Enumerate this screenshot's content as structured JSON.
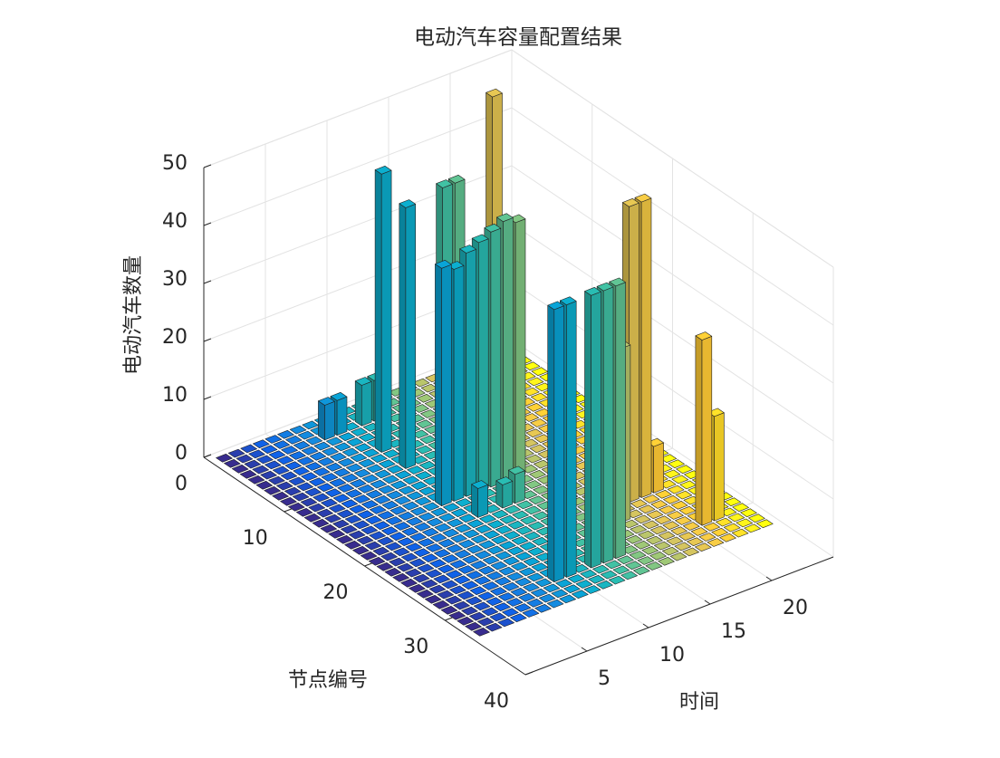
{
  "chart_data": {
    "type": "bar3",
    "title": "电动汽车容量配置结果",
    "xlabel": "时间",
    "ylabel": "节点编号",
    "zlabel": "电动汽车数量",
    "colormap": "parula",
    "grid": true,
    "xlim": [
      0,
      25
    ],
    "ylim": [
      0,
      40
    ],
    "zlim": [
      0,
      50
    ],
    "xticks": [
      5,
      10,
      15,
      20
    ],
    "yticks": [
      0,
      10,
      20,
      30,
      40
    ],
    "zticks": [
      0,
      10,
      20,
      30,
      40,
      50
    ],
    "x": [
      1,
      2,
      3,
      4,
      5,
      6,
      7,
      8,
      9,
      10,
      11,
      12,
      13,
      14,
      15,
      16,
      17,
      18,
      19,
      20,
      21,
      22,
      23,
      24
    ],
    "y": [
      1,
      2,
      3,
      4,
      5,
      6,
      7,
      8,
      9,
      10,
      11,
      12,
      13,
      14,
      15,
      16,
      17,
      18,
      19,
      20,
      21,
      22,
      23,
      24,
      25,
      26,
      27,
      28,
      29,
      30,
      31,
      32,
      33
    ],
    "values": [
      [
        0,
        0,
        0,
        0,
        0,
        0,
        0,
        0,
        0,
        0,
        0,
        0,
        0,
        0,
        0,
        0,
        0,
        0,
        0,
        0,
        0,
        0,
        0,
        0
      ],
      [
        0,
        0,
        0,
        0,
        0,
        0,
        0,
        0,
        0,
        0,
        0,
        0,
        0,
        0,
        0,
        0,
        0,
        0,
        0,
        0,
        0,
        0,
        0,
        0
      ],
      [
        0,
        0,
        0,
        0,
        0,
        0,
        0,
        6,
        6,
        0,
        7,
        7,
        0,
        0,
        0,
        0,
        0,
        0,
        0,
        0,
        0,
        0,
        0,
        0
      ],
      [
        0,
        0,
        0,
        0,
        0,
        0,
        0,
        0,
        0,
        0,
        0,
        0,
        0,
        0,
        0,
        0,
        0,
        0,
        0,
        0,
        0,
        0,
        0,
        0
      ],
      [
        0,
        0,
        0,
        0,
        0,
        0,
        0,
        0,
        0,
        0,
        0,
        0,
        0,
        0,
        0,
        0,
        0,
        0,
        0,
        0,
        0,
        0,
        0,
        0
      ],
      [
        0,
        0,
        0,
        0,
        0,
        0,
        0,
        0,
        0,
        0,
        0,
        0,
        0,
        0,
        0,
        0,
        0,
        0,
        0,
        0,
        0,
        0,
        0,
        0
      ],
      [
        0,
        0,
        0,
        0,
        0,
        0,
        0,
        0,
        0,
        48,
        0,
        0,
        0,
        0,
        0,
        0,
        0,
        0,
        54,
        0,
        0,
        0,
        0,
        0
      ],
      [
        0,
        0,
        0,
        0,
        0,
        0,
        0,
        0,
        0,
        0,
        0,
        0,
        0,
        0,
        0,
        0,
        0,
        0,
        0,
        0,
        0,
        0,
        0,
        0
      ],
      [
        0,
        0,
        0,
        0,
        0,
        0,
        0,
        0,
        0,
        0,
        0,
        0,
        0,
        0,
        0,
        0,
        0,
        0,
        0,
        0,
        0,
        0,
        0,
        0
      ],
      [
        0,
        0,
        0,
        0,
        0,
        0,
        0,
        0,
        0,
        45,
        0,
        0,
        46,
        46,
        0,
        0,
        0,
        0,
        0,
        0,
        0,
        0,
        0,
        0
      ],
      [
        0,
        0,
        0,
        0,
        0,
        0,
        0,
        0,
        0,
        0,
        0,
        0,
        0,
        0,
        0,
        0,
        0,
        0,
        0,
        0,
        0,
        0,
        0,
        0
      ],
      [
        0,
        0,
        0,
        0,
        0,
        0,
        0,
        0,
        0,
        0,
        0,
        0,
        0,
        0,
        0,
        0,
        0,
        0,
        0,
        0,
        0,
        0,
        0,
        0
      ],
      [
        0,
        0,
        0,
        0,
        0,
        0,
        0,
        0,
        0,
        0,
        0,
        0,
        0,
        0,
        0,
        0,
        0,
        0,
        0,
        0,
        0,
        0,
        0,
        0
      ],
      [
        0,
        0,
        0,
        0,
        0,
        0,
        0,
        0,
        0,
        0,
        0,
        0,
        0,
        0,
        0,
        0,
        0,
        0,
        0,
        0,
        0,
        0,
        0,
        0
      ],
      [
        0,
        0,
        0,
        0,
        0,
        0,
        0,
        0,
        0,
        0,
        0,
        0,
        0,
        0,
        0,
        0,
        0,
        0,
        0,
        0,
        0,
        0,
        0,
        0
      ],
      [
        0,
        0,
        0,
        0,
        0,
        0,
        0,
        0,
        41,
        40,
        42,
        43,
        44,
        45,
        44,
        0,
        0,
        0,
        0,
        0,
        0,
        0,
        0,
        0
      ],
      [
        0,
        0,
        0,
        0,
        0,
        0,
        0,
        0,
        0,
        0,
        0,
        0,
        0,
        0,
        0,
        0,
        0,
        0,
        0,
        0,
        0,
        0,
        0,
        0
      ],
      [
        0,
        0,
        0,
        0,
        0,
        0,
        0,
        0,
        0,
        0,
        0,
        0,
        0,
        0,
        0,
        0,
        0,
        0,
        0,
        0,
        0,
        0,
        0,
        0
      ],
      [
        0,
        0,
        0,
        0,
        0,
        0,
        0,
        0,
        0,
        5,
        0,
        4,
        5,
        0,
        0,
        0,
        0,
        0,
        0,
        0,
        0,
        0,
        0,
        0
      ],
      [
        0,
        0,
        0,
        0,
        0,
        0,
        0,
        0,
        0,
        0,
        0,
        0,
        0,
        0,
        0,
        0,
        0,
        0,
        0,
        0,
        0,
        0,
        0,
        0
      ],
      [
        0,
        0,
        0,
        0,
        0,
        0,
        0,
        0,
        0,
        0,
        0,
        0,
        0,
        0,
        0,
        0,
        0,
        0,
        0,
        0,
        0,
        0,
        0,
        0
      ],
      [
        0,
        0,
        0,
        0,
        0,
        0,
        0,
        0,
        0,
        0,
        0,
        0,
        0,
        0,
        0,
        0,
        0,
        0,
        0,
        0,
        0,
        0,
        0,
        0
      ],
      [
        0,
        0,
        0,
        0,
        0,
        0,
        0,
        0,
        0,
        0,
        0,
        0,
        0,
        0,
        0,
        0,
        0,
        0,
        0,
        0,
        0,
        0,
        0,
        0
      ],
      [
        0,
        0,
        0,
        0,
        0,
        0,
        0,
        0,
        0,
        0,
        0,
        0,
        0,
        0,
        0,
        0,
        0,
        0,
        51,
        51,
        8,
        0,
        0,
        0
      ],
      [
        0,
        0,
        0,
        0,
        0,
        0,
        0,
        0,
        0,
        0,
        0,
        0,
        0,
        0,
        0,
        0,
        0,
        0,
        0,
        0,
        0,
        0,
        0,
        0
      ],
      [
        0,
        0,
        0,
        0,
        0,
        0,
        0,
        0,
        0,
        0,
        0,
        0,
        0,
        0,
        0,
        0,
        30,
        0,
        0,
        0,
        0,
        0,
        0,
        0
      ],
      [
        0,
        0,
        0,
        0,
        0,
        0,
        0,
        0,
        0,
        0,
        0,
        0,
        0,
        0,
        0,
        0,
        0,
        0,
        0,
        0,
        0,
        0,
        0,
        0
      ],
      [
        0,
        0,
        0,
        0,
        0,
        0,
        0,
        0,
        0,
        0,
        0,
        0,
        0,
        0,
        0,
        0,
        0,
        0,
        0,
        0,
        0,
        0,
        0,
        0
      ],
      [
        0,
        0,
        0,
        0,
        0,
        0,
        0,
        0,
        0,
        0,
        0,
        0,
        0,
        0,
        0,
        0,
        0,
        0,
        0,
        0,
        0,
        0,
        0,
        0
      ],
      [
        0,
        0,
        0,
        0,
        0,
        0,
        0,
        0,
        47,
        47,
        0,
        47,
        47,
        47,
        0,
        0,
        0,
        0,
        0,
        0,
        32,
        18,
        0,
        0
      ],
      [
        0,
        0,
        0,
        0,
        0,
        0,
        0,
        0,
        0,
        0,
        0,
        0,
        0,
        0,
        0,
        0,
        0,
        0,
        0,
        0,
        0,
        0,
        0,
        0
      ],
      [
        0,
        0,
        0,
        0,
        0,
        0,
        0,
        0,
        0,
        0,
        0,
        0,
        0,
        0,
        0,
        0,
        0,
        0,
        0,
        0,
        0,
        0,
        0,
        0
      ],
      [
        0,
        0,
        0,
        0,
        0,
        0,
        0,
        0,
        0,
        0,
        0,
        0,
        0,
        0,
        0,
        0,
        0,
        0,
        0,
        0,
        0,
        0,
        0,
        0
      ]
    ]
  }
}
